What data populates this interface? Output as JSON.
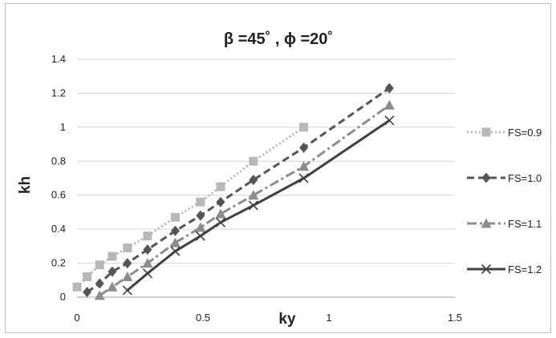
{
  "chart_data": {
    "type": "line",
    "title": "β =45˚ , ϕ =20˚",
    "xlabel": "ky",
    "ylabel": "kh",
    "xlim": [
      0,
      1.5
    ],
    "ylim": [
      0,
      1.4
    ],
    "xticks": [
      "0",
      "0.5",
      "1",
      "1.5"
    ],
    "yticks": [
      "0",
      "0.2",
      "0.4",
      "0.6",
      "0.8",
      "1",
      "1.2",
      "1.4"
    ],
    "grid": "horizontal",
    "legend_position": "right",
    "series": [
      {
        "name": "FS=0.9",
        "color": "#b8b8b8",
        "line_style": "dotted",
        "marker": "square",
        "x": [
          0.0,
          0.04,
          0.09,
          0.14,
          0.2,
          0.28,
          0.39,
          0.49,
          0.57,
          0.7,
          0.9
        ],
        "y": [
          0.06,
          0.12,
          0.19,
          0.24,
          0.29,
          0.36,
          0.47,
          0.56,
          0.65,
          0.8,
          1.0
        ]
      },
      {
        "name": "FS=1.0",
        "color": "#555555",
        "line_style": "dashed",
        "marker": "diamond",
        "x": [
          0.04,
          0.09,
          0.14,
          0.2,
          0.28,
          0.39,
          0.49,
          0.57,
          0.7,
          0.9,
          1.24
        ],
        "y": [
          0.03,
          0.08,
          0.15,
          0.2,
          0.28,
          0.39,
          0.48,
          0.56,
          0.69,
          0.88,
          1.23
        ]
      },
      {
        "name": "FS=1.1",
        "color": "#8c8c8c",
        "line_style": "dashdot",
        "marker": "triangle",
        "x": [
          0.09,
          0.14,
          0.2,
          0.28,
          0.39,
          0.49,
          0.57,
          0.7,
          0.9,
          1.24
        ],
        "y": [
          0.01,
          0.06,
          0.12,
          0.2,
          0.32,
          0.41,
          0.49,
          0.6,
          0.77,
          1.13
        ]
      },
      {
        "name": "FS=1.2",
        "color": "#404040",
        "line_style": "solid",
        "marker": "x",
        "x": [
          0.2,
          0.28,
          0.39,
          0.49,
          0.57,
          0.7,
          0.9,
          1.24
        ],
        "y": [
          0.04,
          0.14,
          0.27,
          0.36,
          0.44,
          0.54,
          0.7,
          1.04
        ]
      }
    ]
  }
}
